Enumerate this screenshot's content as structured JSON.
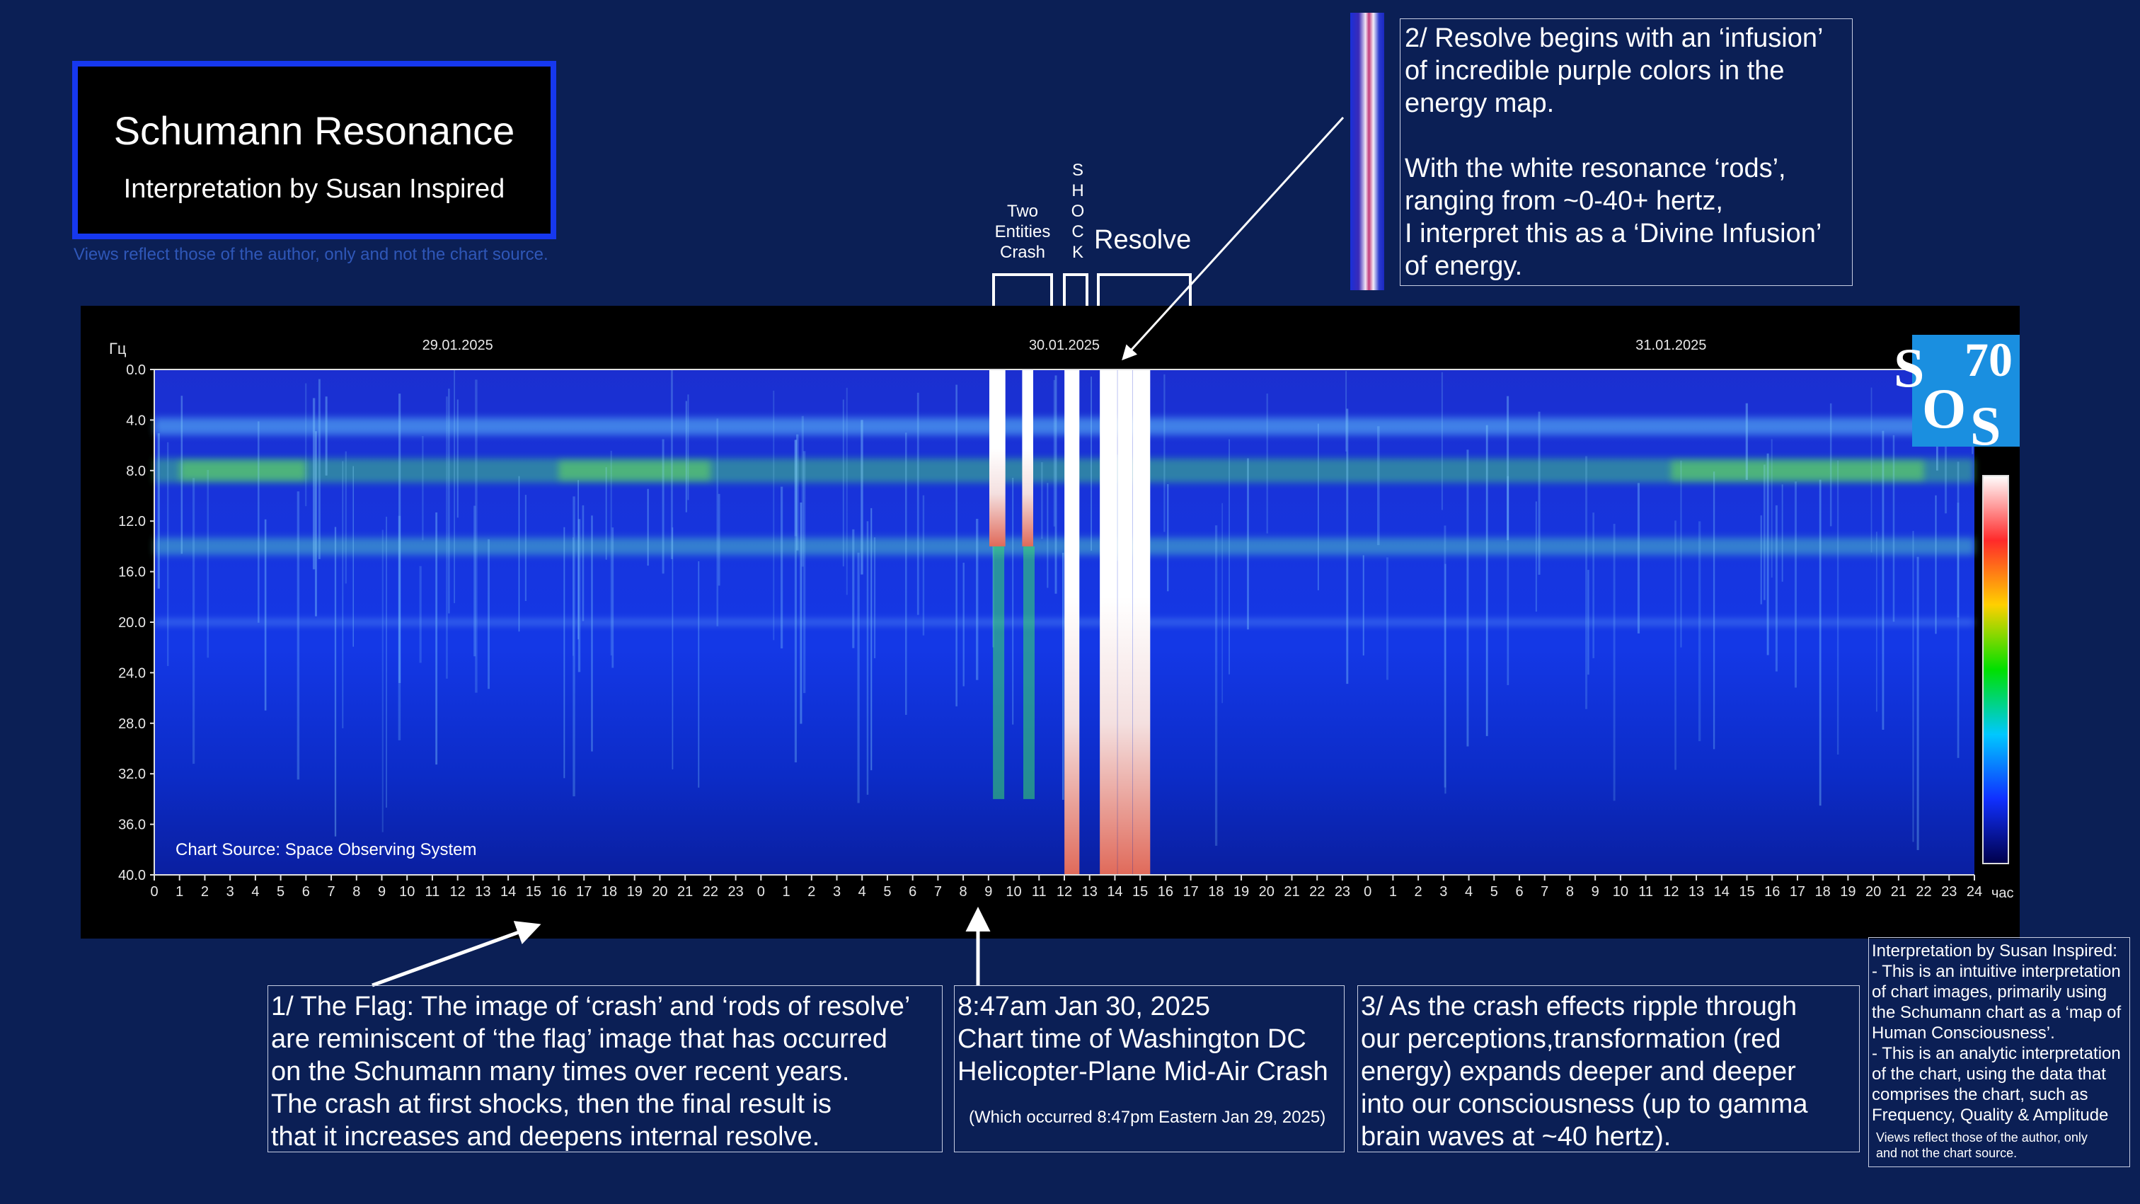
{
  "title": {
    "main": "Schumann Resonance",
    "subtitle": "Interpretation by Susan Inspired",
    "disclaimer": "Views reflect those of the author, only and not the chart source."
  },
  "events": {
    "crash": "Two\nEntities\nCrash",
    "shock": [
      "S",
      "H",
      "O",
      "C",
      "K"
    ],
    "resolve": "Resolve"
  },
  "annotations": {
    "resolve_infusion": "2/ Resolve begins with an ‘infusion’\nof incredible purple colors in the\nenergy map.\n\nWith the white resonance ‘rods’,\nranging from ~0-40+ hertz,\nI interpret this as a ‘Divine Infusion’\nof energy.",
    "flag": "1/ The Flag: The image of ‘crash’ and ‘rods of resolve’\nare reminiscent of ‘the flag’ image that has occurred\non the Schumann many times over recent years.\n   The crash at first shocks, then the final result is\nthat it increases and deepens internal resolve.",
    "time_title": "8:47am Jan 30, 2025",
    "time_lines": "Chart time of Washington DC\nHelicopter-Plane Mid-Air Crash",
    "time_note": "(Which occurred 8:47pm Eastern Jan 29, 2025)",
    "ripple": "3/ As the crash effects ripple through\nour perceptions,transformation (red\nenergy) expands deeper and deeper\ninto our consciousness (up to gamma\nbrain waves at ~40 hertz)."
  },
  "interpretation_box": {
    "text": "Interpretation by Susan Inspired:\n- This is an intuitive interpretation\nof chart images, primarily using\nthe Schumann chart as a ‘map of\nHuman Consciousness’.\n- This is an analytic interpretation\nof the chart, using the data that\ncomprises the chart, such as\nFrequency, Quality & Amplitude",
    "note": "Views reflect those of the author, only\nand not the chart source."
  },
  "logo": {
    "letters": [
      "S",
      "70",
      "O",
      "S"
    ],
    "color": "#1a8fe0"
  },
  "chart_data": {
    "type": "heatmap",
    "source_label": "Chart Source: Space Observing System",
    "y_unit_label": "Гц",
    "x_unit_label": "час",
    "ylim": [
      0,
      40
    ],
    "y_ticks": [
      "0.0",
      "4.0",
      "8.0",
      "12.0",
      "16.0",
      "20.0",
      "24.0",
      "28.0",
      "32.0",
      "36.0",
      "40.0"
    ],
    "x_ticks": [
      "0",
      "1",
      "2",
      "3",
      "4",
      "5",
      "6",
      "7",
      "8",
      "9",
      "10",
      "11",
      "12",
      "13",
      "14",
      "15",
      "16",
      "17",
      "18",
      "19",
      "20",
      "21",
      "22",
      "23",
      "0",
      "1",
      "2",
      "3",
      "4",
      "5",
      "6",
      "7",
      "8",
      "9",
      "10",
      "11",
      "12",
      "13",
      "14",
      "15",
      "16",
      "17",
      "18",
      "19",
      "20",
      "21",
      "22",
      "23",
      "0",
      "1",
      "2",
      "3",
      "4",
      "5",
      "6",
      "7",
      "8",
      "9",
      "10",
      "11",
      "12",
      "13",
      "14",
      "15",
      "16",
      "17",
      "18",
      "19",
      "20",
      "21",
      "22",
      "23",
      "24"
    ],
    "dates": [
      {
        "label": "29.01.2025",
        "hour": 12
      },
      {
        "label": "30.01.2025",
        "hour": 36
      },
      {
        "label": "31.01.2025",
        "hour": 60
      }
    ],
    "hours_total": 72,
    "resonance_bands_hz": [
      4.5,
      8,
      14,
      20
    ],
    "white_rods_hours": [
      33.2,
      33.3,
      33.5,
      34.5,
      34.6,
      36.2,
      36.3,
      36.4,
      37.6,
      37.9,
      38.3,
      38.5,
      38.9,
      39.2
    ],
    "colorbar": [
      "#ffffff",
      "#ff2a2a",
      "#ffd000",
      "#00e000",
      "#00c8ff",
      "#1030ff",
      "#00004a"
    ]
  }
}
